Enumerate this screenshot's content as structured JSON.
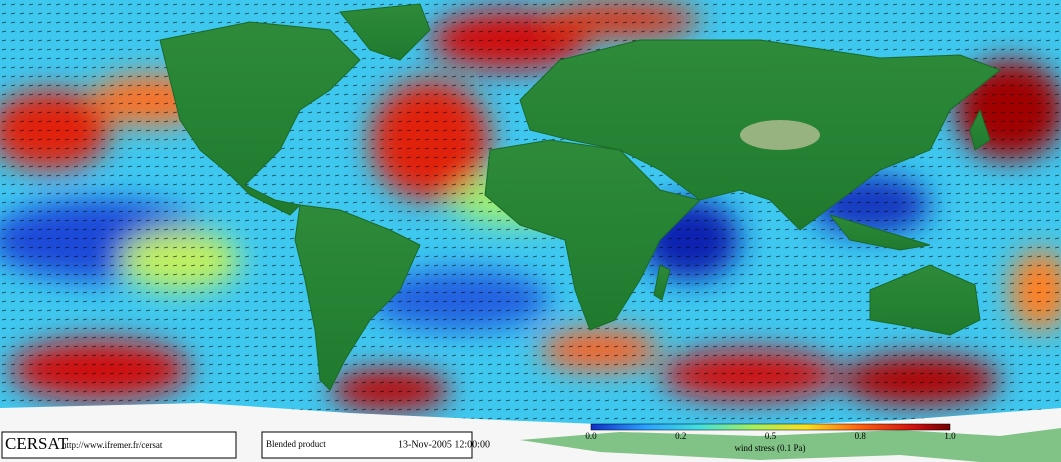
{
  "logo": "CERSAT",
  "url": "http://www.ifremer.fr/cersat",
  "product": "Blended product",
  "timestamp": "13-Nov-2005 12:00:00",
  "colorbar": {
    "title": "wind stress (0.1 Pa)",
    "labels": [
      "0.0",
      "0.2",
      "0.5",
      "0.8",
      "1.0"
    ]
  }
}
